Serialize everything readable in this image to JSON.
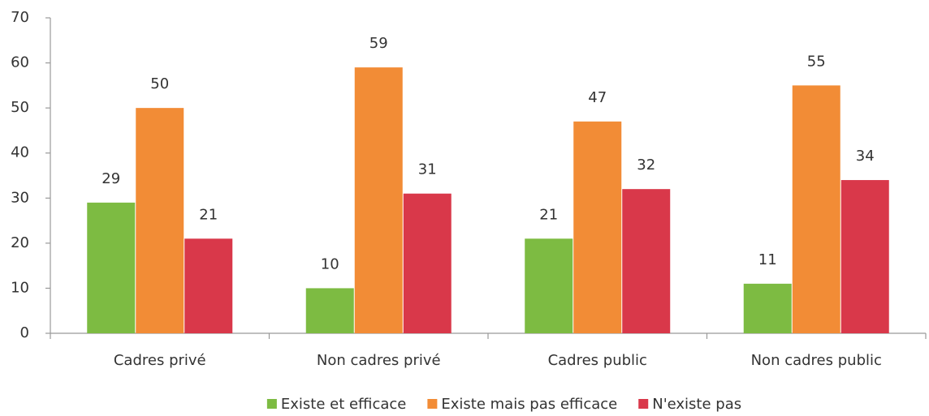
{
  "chart_data": {
    "type": "bar",
    "categories": [
      "Cadres privé",
      "Non cadres privé",
      "Cadres public",
      "Non cadres public"
    ],
    "series": [
      {
        "name": "Existe et efficace",
        "color": "#7dbb42",
        "values": [
          29,
          10,
          21,
          11
        ]
      },
      {
        "name": "Existe mais pas efficace",
        "color": "#f28c36",
        "values": [
          50,
          59,
          47,
          55
        ]
      },
      {
        "name": "N'existe pas",
        "color": "#d9384a",
        "values": [
          21,
          31,
          32,
          34
        ]
      }
    ],
    "ylim": [
      0,
      70
    ],
    "yticks": [
      0,
      10,
      20,
      30,
      40,
      50,
      60,
      70
    ],
    "grid": false,
    "legend": "bottom"
  }
}
